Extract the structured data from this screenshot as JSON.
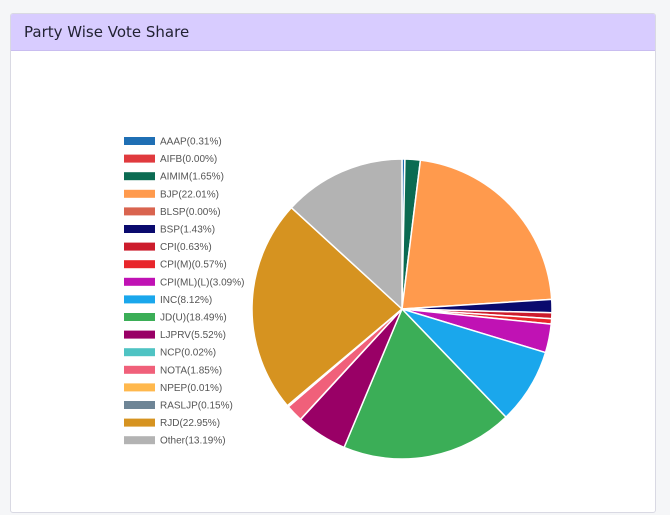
{
  "header": {
    "title": "Party Wise Vote Share"
  },
  "chart_data": {
    "type": "pie",
    "legend_position": "left",
    "start_angle_deg": -90,
    "slices": [
      {
        "label": "AAAP(0.31%)",
        "name": "AAAP",
        "value": 0.31,
        "color": "#1f6fb4"
      },
      {
        "label": "AIFB(0.00%)",
        "name": "AIFB",
        "value": 0.0,
        "color": "#e03a3e"
      },
      {
        "label": "AIMIM(1.65%)",
        "name": "AIMIM",
        "value": 1.65,
        "color": "#0b6b52"
      },
      {
        "label": "BJP(22.01%)",
        "name": "BJP",
        "value": 22.01,
        "color": "#ff9a4d"
      },
      {
        "label": "BLSP(0.00%)",
        "name": "BLSP",
        "value": 0.0,
        "color": "#d9644f"
      },
      {
        "label": "BSP(1.43%)",
        "name": "BSP",
        "value": 1.43,
        "color": "#0a0a6e"
      },
      {
        "label": "CPI(0.63%)",
        "name": "CPI",
        "value": 0.63,
        "color": "#cc1c2c"
      },
      {
        "label": "CPI(M)(0.57%)",
        "name": "CPI(M)",
        "value": 0.57,
        "color": "#e8262b"
      },
      {
        "label": "CPI(ML)(L)(3.09%)",
        "name": "CPI(ML)(L)",
        "value": 3.09,
        "color": "#c012b4"
      },
      {
        "label": "INC(8.12%)",
        "name": "INC",
        "value": 8.12,
        "color": "#1aa7ec"
      },
      {
        "label": "JD(U)(18.49%)",
        "name": "JD(U)",
        "value": 18.49,
        "color": "#3bae57"
      },
      {
        "label": "LJPRV(5.52%)",
        "name": "LJPRV",
        "value": 5.52,
        "color": "#990066"
      },
      {
        "label": "NCP(0.02%)",
        "name": "NCP",
        "value": 0.02,
        "color": "#4fc3c3"
      },
      {
        "label": "NOTA(1.85%)",
        "name": "NOTA",
        "value": 1.85,
        "color": "#f0607a"
      },
      {
        "label": "NPEP(0.01%)",
        "name": "NPEP",
        "value": 0.01,
        "color": "#ffb84d"
      },
      {
        "label": "RASLJP(0.15%)",
        "name": "RASLJP",
        "value": 0.15,
        "color": "#6e8596"
      },
      {
        "label": "RJD(22.95%)",
        "name": "RJD",
        "value": 22.95,
        "color": "#d69320"
      },
      {
        "label": "Other(13.19%)",
        "name": "Other",
        "value": 13.19,
        "color": "#b3b3b3"
      }
    ]
  }
}
